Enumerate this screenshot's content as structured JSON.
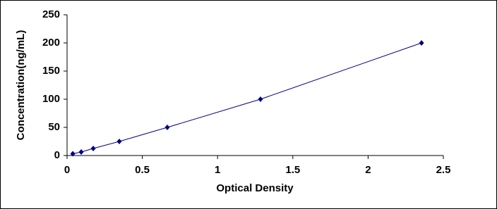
{
  "chart_data": {
    "type": "scatter",
    "x_label": "Optical Density",
    "y_label": "Concentration(ng/mL)",
    "series": [
      {
        "color": "#000080",
        "x": [
          0.038,
          0.094,
          0.174,
          0.347,
          0.666,
          1.285,
          2.355
        ],
        "values": [
          3.125,
          6.25,
          12.5,
          25,
          50,
          100,
          200
        ]
      }
    ],
    "xlim": [
      0,
      2.5
    ],
    "xticks": [
      0,
      0.5,
      1,
      1.5,
      2,
      2.5
    ],
    "ylim": [
      0,
      250
    ],
    "yticks": [
      0,
      50,
      100,
      150,
      200,
      250
    ],
    "grid": false
  }
}
